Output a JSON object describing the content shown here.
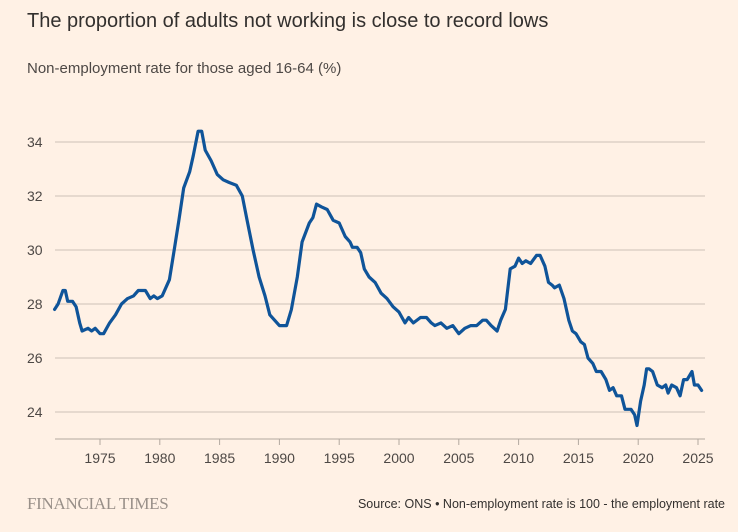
{
  "title": "The proportion of adults not working is close to record lows",
  "subtitle": "Non-employment rate for those aged 16-64 (%)",
  "footer": {
    "logo": "FINANCIAL TIMES",
    "source": "Source: ONS • Non-employment rate is 100 - the employment rate"
  },
  "chart_data": {
    "type": "line",
    "title": "The proportion of adults not working is close to record lows",
    "ylabel": "Non-employment rate for those aged 16-64 (%)",
    "xlabel": "",
    "xlim": [
      1971.2,
      2025.6
    ],
    "ylim": [
      23,
      35
    ],
    "yticks": [
      24,
      26,
      28,
      30,
      32,
      34
    ],
    "xticks": [
      1975,
      1980,
      1985,
      1990,
      1995,
      2000,
      2005,
      2010,
      2015,
      2020,
      2025
    ],
    "grid": true,
    "line_color": "#0f5499",
    "series": [
      {
        "name": "Non-employment rate",
        "x": [
          1971.2,
          1971.5,
          1971.9,
          1972.1,
          1972.3,
          1972.7,
          1973.0,
          1973.3,
          1973.5,
          1974.0,
          1974.3,
          1974.6,
          1975.0,
          1975.3,
          1975.8,
          1976.3,
          1976.8,
          1977.3,
          1977.8,
          1978.2,
          1978.8,
          1979.2,
          1979.5,
          1979.8,
          1980.2,
          1980.8,
          1981.2,
          1981.6,
          1982.0,
          1982.5,
          1982.8,
          1983.2,
          1983.5,
          1983.8,
          1984.3,
          1984.8,
          1985.3,
          1985.8,
          1986.4,
          1986.9,
          1987.3,
          1987.8,
          1988.3,
          1988.8,
          1989.2,
          1989.6,
          1990.0,
          1990.6,
          1991.0,
          1991.5,
          1991.9,
          1992.5,
          1992.8,
          1993.1,
          1993.5,
          1994.0,
          1994.5,
          1995.0,
          1995.5,
          1995.9,
          1996.1,
          1996.5,
          1996.8,
          1997.1,
          1997.5,
          1998.0,
          1998.5,
          1999.0,
          1999.5,
          2000.0,
          2000.5,
          2000.8,
          2001.2,
          2001.8,
          2002.3,
          2002.7,
          2003.0,
          2003.5,
          2004.0,
          2004.5,
          2005.0,
          2005.5,
          2006.0,
          2006.5,
          2007.0,
          2007.3,
          2007.7,
          2008.2,
          2008.5,
          2008.9,
          2009.3,
          2009.7,
          2010.0,
          2010.3,
          2010.6,
          2011.0,
          2011.5,
          2011.8,
          2012.2,
          2012.5,
          2012.8,
          2013.0,
          2013.4,
          2013.8,
          2014.2,
          2014.5,
          2014.8,
          2015.2,
          2015.5,
          2015.8,
          2016.2,
          2016.5,
          2016.9,
          2017.3,
          2017.6,
          2017.9,
          2018.2,
          2018.6,
          2018.9,
          2019.4,
          2019.7,
          2019.9,
          2020.2,
          2020.5,
          2020.7,
          2020.9,
          2021.2,
          2021.6,
          2022.0,
          2022.3,
          2022.5,
          2022.8,
          2023.2,
          2023.5,
          2023.8,
          2024.1,
          2024.5,
          2024.7,
          2025.0,
          2025.3
        ],
        "y": [
          27.8,
          28.0,
          28.5,
          28.5,
          28.1,
          28.1,
          27.9,
          27.3,
          27.0,
          27.1,
          27.0,
          27.1,
          26.9,
          26.9,
          27.3,
          27.6,
          28.0,
          28.2,
          28.3,
          28.5,
          28.5,
          28.2,
          28.3,
          28.2,
          28.3,
          28.9,
          30.0,
          31.1,
          32.3,
          32.9,
          33.5,
          34.4,
          34.4,
          33.7,
          33.3,
          32.8,
          32.6,
          32.5,
          32.4,
          32.0,
          31.1,
          30.0,
          29.0,
          28.3,
          27.6,
          27.4,
          27.2,
          27.2,
          27.8,
          29.0,
          30.3,
          31.0,
          31.2,
          31.7,
          31.6,
          31.5,
          31.1,
          31.0,
          30.5,
          30.3,
          30.1,
          30.1,
          29.9,
          29.3,
          29.0,
          28.8,
          28.4,
          28.2,
          27.9,
          27.7,
          27.3,
          27.5,
          27.3,
          27.5,
          27.5,
          27.3,
          27.2,
          27.3,
          27.1,
          27.2,
          26.9,
          27.1,
          27.2,
          27.2,
          27.4,
          27.4,
          27.2,
          27.0,
          27.4,
          27.8,
          29.3,
          29.4,
          29.7,
          29.5,
          29.6,
          29.5,
          29.8,
          29.8,
          29.4,
          28.8,
          28.7,
          28.6,
          28.7,
          28.2,
          27.4,
          27.0,
          26.9,
          26.6,
          26.5,
          26.0,
          25.8,
          25.5,
          25.5,
          25.2,
          24.8,
          24.9,
          24.6,
          24.6,
          24.1,
          24.1,
          23.9,
          23.5,
          24.4,
          25.0,
          25.6,
          25.6,
          25.5,
          25.0,
          24.9,
          25.0,
          24.7,
          25.0,
          24.9,
          24.6,
          25.2,
          25.2,
          25.5,
          25.0,
          25.0,
          24.8
        ]
      }
    ]
  }
}
